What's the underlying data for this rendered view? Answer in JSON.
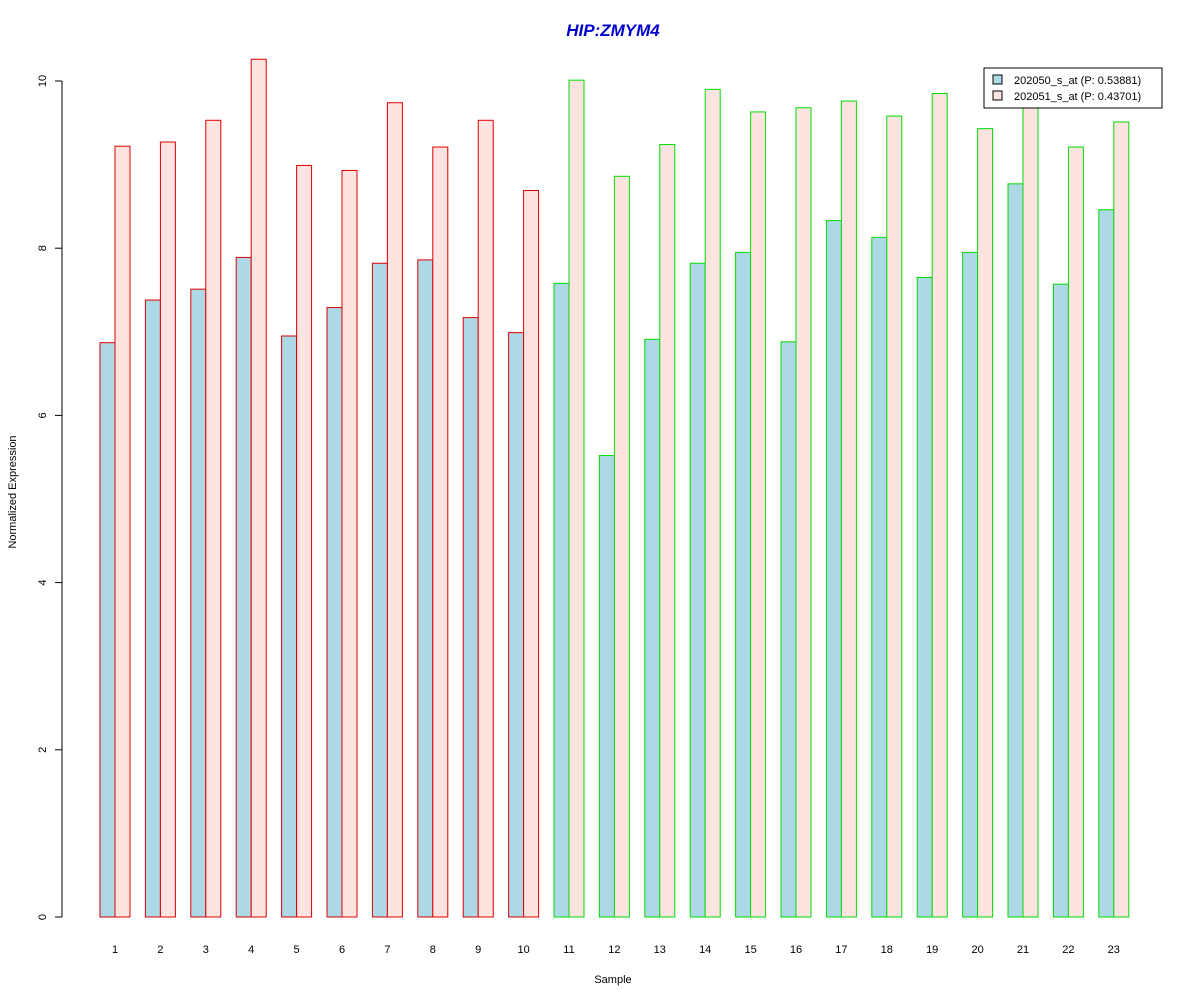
{
  "chart_data": {
    "type": "bar",
    "title": "HIP:ZMYM4",
    "xlabel": "Sample",
    "ylabel": "Normalized Expression",
    "ylim": [
      0,
      10.2
    ],
    "yticks": [
      "0",
      "2",
      "4",
      "6",
      "8",
      "10"
    ],
    "grid": false,
    "legend_position": "top-right",
    "categories": [
      "1",
      "2",
      "3",
      "4",
      "5",
      "6",
      "7",
      "8",
      "9",
      "10",
      "11",
      "12",
      "13",
      "14",
      "15",
      "16",
      "17",
      "18",
      "19",
      "20",
      "21",
      "22",
      "23"
    ],
    "series": [
      {
        "name": "202050_s_at (P: 0.53881)",
        "fill": "#add8e6",
        "values": [
          6.87,
          7.38,
          7.51,
          7.89,
          6.95,
          7.29,
          7.82,
          7.86,
          7.17,
          6.99,
          7.58,
          5.52,
          6.91,
          7.82,
          7.95,
          6.88,
          8.33,
          8.13,
          7.65,
          7.95,
          8.77,
          7.57,
          8.46
        ]
      },
      {
        "name": "202051_s_at (P: 0.43701)",
        "fill": "#fde4e1",
        "values": [
          9.22,
          9.27,
          9.53,
          10.26,
          8.99,
          8.93,
          9.74,
          9.21,
          9.53,
          8.69,
          10.01,
          8.86,
          9.24,
          9.9,
          9.63,
          9.68,
          9.76,
          9.58,
          9.85,
          9.43,
          9.79,
          9.21,
          9.51
        ]
      }
    ],
    "group_border_colors": [
      "#dd0000",
      "#dd0000",
      "#dd0000",
      "#dd0000",
      "#dd0000",
      "#dd0000",
      "#dd0000",
      "#dd0000",
      "#dd0000",
      "#dd0000",
      "#00dd00",
      "#00dd00",
      "#00dd00",
      "#00dd00",
      "#00dd00",
      "#00dd00",
      "#00dd00",
      "#00dd00",
      "#00dd00",
      "#00dd00",
      "#00dd00",
      "#00dd00",
      "#00dd00"
    ],
    "title_color": "#0000cc"
  }
}
